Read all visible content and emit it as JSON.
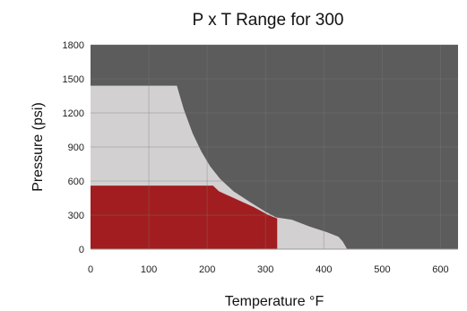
{
  "chart_data": {
    "type": "area",
    "title": "P x T Range for 300",
    "xlabel": "Temperature °F",
    "ylabel": "Pressure (psi)",
    "xlim": [
      0,
      630
    ],
    "ylim": [
      0,
      1800
    ],
    "xticks": [
      0,
      100,
      200,
      300,
      400,
      500,
      600
    ],
    "yticks": [
      0,
      300,
      600,
      900,
      1200,
      1500,
      1800
    ],
    "grid": true,
    "background_color": "#5c5c5c",
    "series": [
      {
        "color": "#d3d0d1",
        "points": [
          [
            0,
            0
          ],
          [
            0,
            1440
          ],
          [
            148,
            1440
          ],
          [
            160,
            1230
          ],
          [
            175,
            1020
          ],
          [
            190,
            860
          ],
          [
            205,
            730
          ],
          [
            222,
            620
          ],
          [
            245,
            510
          ],
          [
            275,
            410
          ],
          [
            300,
            330
          ],
          [
            318,
            280
          ],
          [
            345,
            260
          ],
          [
            375,
            200
          ],
          [
            405,
            150
          ],
          [
            425,
            110
          ],
          [
            432,
            70
          ],
          [
            440,
            0
          ]
        ]
      },
      {
        "color": "#a21d1f",
        "points": [
          [
            0,
            0
          ],
          [
            0,
            560
          ],
          [
            210,
            560
          ],
          [
            220,
            510
          ],
          [
            250,
            440
          ],
          [
            280,
            370
          ],
          [
            305,
            300
          ],
          [
            320,
            270
          ],
          [
            320,
            0
          ]
        ]
      }
    ]
  }
}
